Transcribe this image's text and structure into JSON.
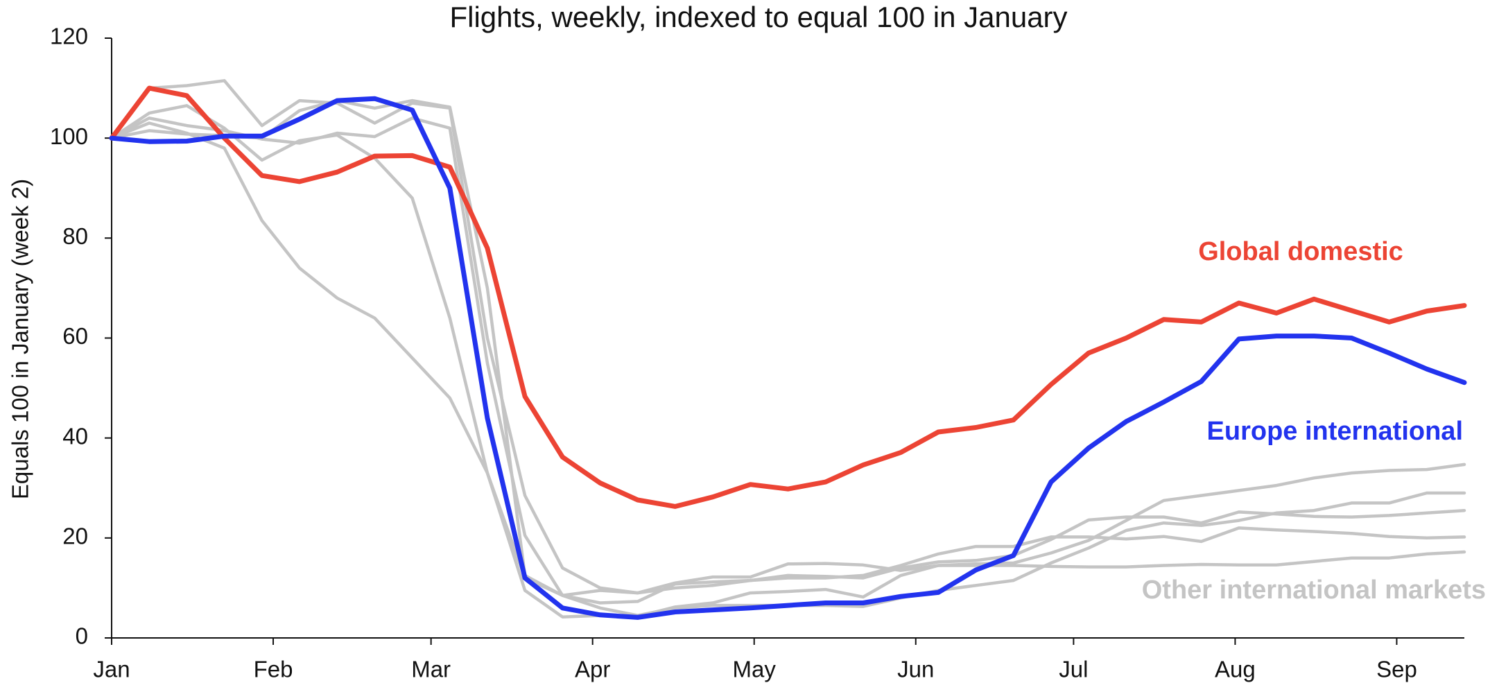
{
  "chart_data": {
    "type": "line",
    "title": "Flights, weekly, indexed to equal 100 in January",
    "y_label": "Equals 100 in January (week 2)",
    "x": [
      0,
      1,
      2,
      3,
      4,
      5,
      6,
      7,
      8,
      9,
      10,
      11,
      12,
      13,
      14,
      15,
      16,
      17,
      18,
      19,
      20,
      21,
      22,
      23,
      24,
      25,
      26,
      27,
      28,
      29,
      30,
      31,
      32,
      33,
      34,
      35,
      36
    ],
    "xlim": [
      0,
      36
    ],
    "xticks": [
      {
        "value": 0,
        "label": "Jan"
      },
      {
        "value": 4.3,
        "label": "Feb"
      },
      {
        "value": 8.5,
        "label": "Mar"
      },
      {
        "value": 12.8,
        "label": "Apr"
      },
      {
        "value": 17.1,
        "label": "May"
      },
      {
        "value": 21.4,
        "label": "Jun"
      },
      {
        "value": 25.6,
        "label": "Jul"
      },
      {
        "value": 29.9,
        "label": "Aug"
      },
      {
        "value": 34.2,
        "label": "Sep"
      }
    ],
    "ylim": [
      0,
      120
    ],
    "yticks": [
      0,
      20,
      40,
      60,
      80,
      100,
      120
    ],
    "grid": false,
    "series": [
      {
        "name": "Other international markets",
        "color": "#c4c4c4",
        "lines": [
          [
            100,
            103,
            101,
            98,
            83.5,
            74,
            68,
            64,
            56,
            48,
            33,
            12,
            8.5,
            6,
            4.5,
            6,
            6.5,
            6.5,
            6.5,
            6.5,
            6.3,
            8,
            9.5,
            10.5,
            11.5,
            15,
            18,
            21.5,
            23,
            22.5,
            23.5,
            25,
            25.5,
            27,
            27,
            29,
            29
          ],
          [
            100,
            105,
            106.5,
            102,
            95.6,
            99.5,
            100.6,
            96,
            88,
            64,
            33,
            9.5,
            4.2,
            4.5,
            4.3,
            6.2,
            7,
            9,
            9.3,
            9.7,
            8.2,
            12.5,
            14.5,
            14.8,
            15,
            17,
            19.5,
            23.5,
            27.5,
            28.5,
            29.5,
            30.5,
            32,
            33,
            33.5,
            33.7,
            34.7
          ],
          [
            100,
            110,
            110.5,
            111.5,
            102.5,
            107.5,
            107,
            103,
            107,
            106,
            60,
            28.5,
            14,
            10,
            9,
            11,
            12.2,
            12.2,
            14.8,
            14.9,
            14.6,
            13.5,
            14.5,
            14.5,
            14.5,
            14.3,
            14.2,
            14.2,
            14.5,
            14.7,
            14.6,
            14.6,
            15.3,
            16,
            16,
            16.8,
            17.2
          ],
          [
            100,
            104,
            102.5,
            101.5,
            99.8,
            99,
            101,
            100.3,
            104,
            102,
            55,
            20.5,
            8.5,
            9.5,
            9,
            10,
            10.5,
            11.5,
            12,
            12,
            12.5,
            14.5,
            16.8,
            18.3,
            18.3,
            20.2,
            20.2,
            19.8,
            20.3,
            19.3,
            22,
            21.6,
            21.3,
            20.9,
            20.3,
            20,
            20.2
          ],
          [
            100,
            101.5,
            100.8,
            100.5,
            100,
            105.5,
            107.5,
            106,
            107.5,
            106.2,
            70,
            12.5,
            8.5,
            7,
            7.3,
            10.8,
            11.2,
            11.5,
            12.5,
            12.3,
            12,
            14,
            15.2,
            15.5,
            16.5,
            19.7,
            23.6,
            24.2,
            24.2,
            23,
            25.2,
            24.8,
            24.3,
            24.2,
            24.5,
            25,
            25.5
          ]
        ]
      },
      {
        "name": "Global domestic",
        "color": "#ec4434",
        "values": [
          100,
          110,
          108.5,
          100,
          92.5,
          91.3,
          93.2,
          96.4,
          96.5,
          94.2,
          78,
          48.3,
          36.2,
          31,
          27.6,
          26.3,
          28.2,
          30.7,
          29.8,
          31.2,
          34.6,
          37.1,
          41.2,
          42.1,
          43.6,
          50.7,
          57,
          60,
          63.7,
          63.2,
          67,
          65,
          67.8,
          65.5,
          63.2,
          65.4,
          66.5
        ]
      },
      {
        "name": "Europe international",
        "color": "#2233ee",
        "values": [
          100,
          99.3,
          99.4,
          100.4,
          100.4,
          103.8,
          107.5,
          107.9,
          105.6,
          90,
          44,
          12,
          6,
          4.6,
          4.1,
          5.2,
          5.6,
          6,
          6.5,
          7,
          7,
          8.3,
          9.1,
          13.6,
          16.5,
          31.2,
          38,
          43.3,
          47.2,
          51.3,
          59.8,
          60.4,
          60.4,
          60,
          57,
          53.8,
          51.1
        ]
      }
    ]
  }
}
